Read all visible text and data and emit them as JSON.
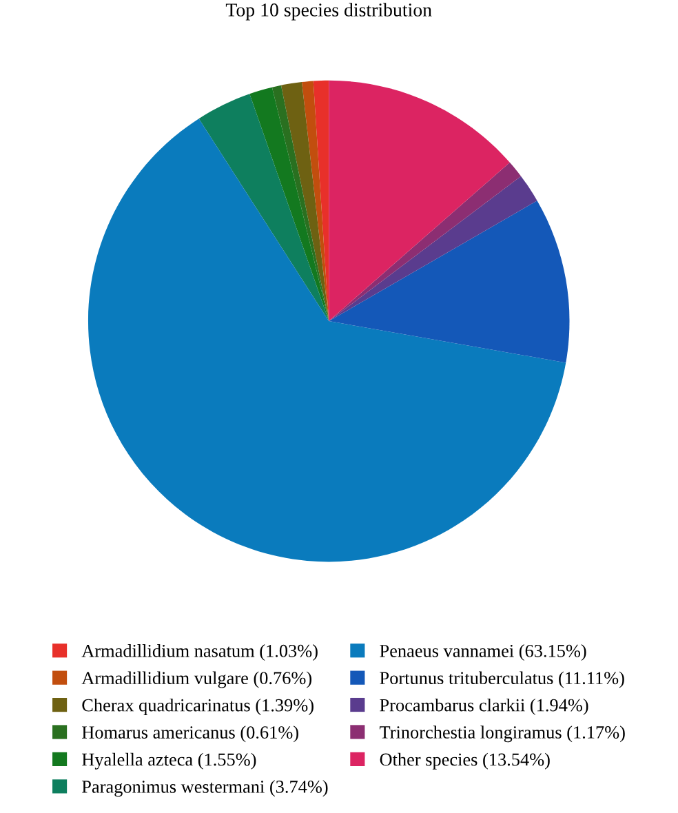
{
  "chart_data": {
    "type": "pie",
    "title": "Top 10 species distribution",
    "categories": [
      "Armadillidium nasatum (1.03%)",
      "Armadillidium vulgare (0.76%)",
      "Cherax quadricarinatus (1.39%)",
      "Homarus americanus (0.61%)",
      "Hyalella azteca (1.55%)",
      "Paragonimus westermani (3.74%)",
      "Penaeus vannamei (63.15%)",
      "Portunus trituberculatus (11.11%)",
      "Procambarus clarkii (1.94%)",
      "Trinorchestia longiramus (1.17%)",
      "Other species (13.54%)"
    ],
    "values": [
      1.03,
      0.76,
      1.39,
      0.61,
      1.55,
      3.74,
      63.15,
      11.11,
      1.94,
      1.17,
      13.54
    ],
    "colors": [
      "#e8302a",
      "#c24e0e",
      "#6e6112",
      "#2a7020",
      "#13791f",
      "#0e7f5e",
      "#0a7bbd",
      "#1458b8",
      "#5a3c8e",
      "#8c2e72",
      "#dc2462"
    ],
    "legend": "bottom"
  }
}
